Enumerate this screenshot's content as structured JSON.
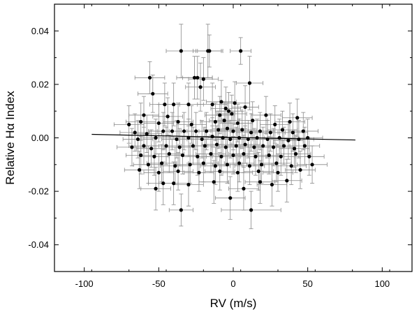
{
  "chart_data": {
    "type": "scatter",
    "title": "",
    "xlabel": "RV (m/s)",
    "ylabel": "Relative Hα Index",
    "xlim": [
      -120,
      120
    ],
    "ylim": [
      -0.05,
      0.05
    ],
    "x_ticks": [
      -100,
      -50,
      0,
      50,
      100
    ],
    "x_tick_labels": [
      "-100",
      "-50",
      "0",
      "50",
      "100"
    ],
    "y_ticks": [
      -0.04,
      -0.02,
      0.0,
      0.02,
      0.04
    ],
    "y_tick_labels": [
      "-0.04",
      "-0.02",
      "0.00",
      "0.02",
      "0.04"
    ],
    "grid": false,
    "marker_color": "#000000",
    "error_bar_color": "#888888",
    "fit_line": {
      "x": [
        -95,
        82
      ],
      "y": [
        0.0013,
        -0.0008
      ]
    },
    "points": [
      {
        "x": -35,
        "y": 0.0325,
        "xerr": 10,
        "yerr": 0.01
      },
      {
        "x": -17,
        "y": 0.0325,
        "xerr": 10,
        "yerr": 0.01
      },
      {
        "x": -16,
        "y": 0.0325,
        "xerr": 8,
        "yerr": 0.006
      },
      {
        "x": 5,
        "y": 0.0325,
        "xerr": 7,
        "yerr": 0.005
      },
      {
        "x": -56,
        "y": 0.0225,
        "xerr": 10,
        "yerr": 0.006
      },
      {
        "x": -26,
        "y": 0.0225,
        "xerr": 12,
        "yerr": 0.008
      },
      {
        "x": -24,
        "y": 0.0225,
        "xerr": 10,
        "yerr": 0.008
      },
      {
        "x": -20,
        "y": 0.022,
        "xerr": 10,
        "yerr": 0.008
      },
      {
        "x": 11,
        "y": 0.0205,
        "xerr": 9,
        "yerr": 0.01
      },
      {
        "x": -22,
        "y": 0.019,
        "xerr": 10,
        "yerr": 0.009
      },
      {
        "x": -54,
        "y": 0.0165,
        "xerr": 10,
        "yerr": 0.007
      },
      {
        "x": -30,
        "y": 0.0125,
        "xerr": 10,
        "yerr": 0.008
      },
      {
        "x": -40,
        "y": 0.0125,
        "xerr": 10,
        "yerr": 0.008
      },
      {
        "x": -46,
        "y": 0.0125,
        "xerr": 10,
        "yerr": 0.008
      },
      {
        "x": -14,
        "y": 0.0125,
        "xerr": 10,
        "yerr": 0.008
      },
      {
        "x": -8,
        "y": 0.0135,
        "xerr": 10,
        "yerr": 0.008
      },
      {
        "x": 1,
        "y": 0.013,
        "xerr": 10,
        "yerr": 0.008
      },
      {
        "x": -5,
        "y": 0.011,
        "xerr": 10,
        "yerr": 0.008
      },
      {
        "x": -3,
        "y": 0.01,
        "xerr": 9,
        "yerr": 0.007
      },
      {
        "x": 8,
        "y": 0.0115,
        "xerr": 9,
        "yerr": 0.008
      },
      {
        "x": -1,
        "y": 0.009,
        "xerr": 10,
        "yerr": 0.007
      },
      {
        "x": -9,
        "y": 0.0085,
        "xerr": 10,
        "yerr": 0.007
      },
      {
        "x": -60,
        "y": 0.0085,
        "xerr": 10,
        "yerr": 0.007
      },
      {
        "x": -44,
        "y": 0.008,
        "xerr": 10,
        "yerr": 0.007
      },
      {
        "x": 22,
        "y": 0.0085,
        "xerr": 10,
        "yerr": 0.007
      },
      {
        "x": 43,
        "y": 0.0075,
        "xerr": 10,
        "yerr": 0.007
      },
      {
        "x": -70,
        "y": 0.005,
        "xerr": 10,
        "yerr": 0.007
      },
      {
        "x": -62,
        "y": 0.006,
        "xerr": 10,
        "yerr": 0.007
      },
      {
        "x": -50,
        "y": 0.0055,
        "xerr": 10,
        "yerr": 0.007
      },
      {
        "x": -37,
        "y": 0.006,
        "xerr": 10,
        "yerr": 0.007
      },
      {
        "x": -28,
        "y": 0.005,
        "xerr": 10,
        "yerr": 0.007
      },
      {
        "x": -12,
        "y": 0.006,
        "xerr": 10,
        "yerr": 0.007
      },
      {
        "x": -6,
        "y": 0.0065,
        "xerr": 10,
        "yerr": 0.007
      },
      {
        "x": 3,
        "y": 0.0055,
        "xerr": 10,
        "yerr": 0.007
      },
      {
        "x": 13,
        "y": 0.0065,
        "xerr": 10,
        "yerr": 0.007
      },
      {
        "x": 28,
        "y": 0.005,
        "xerr": 10,
        "yerr": 0.007
      },
      {
        "x": 38,
        "y": 0.006,
        "xerr": 10,
        "yerr": 0.007
      },
      {
        "x": -66,
        "y": 0.002,
        "xerr": 10,
        "yerr": 0.007
      },
      {
        "x": -58,
        "y": 0.0015,
        "xerr": 10,
        "yerr": 0.007
      },
      {
        "x": -47,
        "y": 0.0025,
        "xerr": 10,
        "yerr": 0.007
      },
      {
        "x": -41,
        "y": 0.0025,
        "xerr": 10,
        "yerr": 0.007
      },
      {
        "x": -33,
        "y": 0.0025,
        "xerr": 10,
        "yerr": 0.007
      },
      {
        "x": -25,
        "y": 0.0025,
        "xerr": 10,
        "yerr": 0.007
      },
      {
        "x": -18,
        "y": 0.0025,
        "xerr": 10,
        "yerr": 0.007
      },
      {
        "x": -10,
        "y": 0.003,
        "xerr": 10,
        "yerr": 0.007
      },
      {
        "x": -4,
        "y": 0.0035,
        "xerr": 10,
        "yerr": 0.007
      },
      {
        "x": 0,
        "y": 0.0025,
        "xerr": 10,
        "yerr": 0.007
      },
      {
        "x": 6,
        "y": 0.003,
        "xerr": 10,
        "yerr": 0.007
      },
      {
        "x": 12,
        "y": 0.002,
        "xerr": 10,
        "yerr": 0.007
      },
      {
        "x": 18,
        "y": 0.0025,
        "xerr": 10,
        "yerr": 0.007
      },
      {
        "x": 25,
        "y": 0.002,
        "xerr": 10,
        "yerr": 0.007
      },
      {
        "x": 33,
        "y": 0.003,
        "xerr": 10,
        "yerr": 0.007
      },
      {
        "x": 40,
        "y": 0.002,
        "xerr": 10,
        "yerr": 0.007
      },
      {
        "x": 47,
        "y": 0.0025,
        "xerr": 10,
        "yerr": 0.007
      },
      {
        "x": -64,
        "y": -0.0005,
        "xerr": 10,
        "yerr": 0.007
      },
      {
        "x": -52,
        "y": 0.0,
        "xerr": 10,
        "yerr": 0.007
      },
      {
        "x": -38,
        "y": -0.0005,
        "xerr": 10,
        "yerr": 0.007
      },
      {
        "x": -30,
        "y": 0.0,
        "xerr": 10,
        "yerr": 0.007
      },
      {
        "x": -21,
        "y": -0.0005,
        "xerr": 10,
        "yerr": 0.007
      },
      {
        "x": -14,
        "y": 0.0005,
        "xerr": 10,
        "yerr": 0.007
      },
      {
        "x": -7,
        "y": 0.0,
        "xerr": 10,
        "yerr": 0.007
      },
      {
        "x": -2,
        "y": -0.0005,
        "xerr": 10,
        "yerr": 0.007
      },
      {
        "x": 4,
        "y": 0.0,
        "xerr": 10,
        "yerr": 0.007
      },
      {
        "x": 10,
        "y": -0.0005,
        "xerr": 10,
        "yerr": 0.007
      },
      {
        "x": 16,
        "y": 0.0,
        "xerr": 10,
        "yerr": 0.007
      },
      {
        "x": 23,
        "y": -0.0005,
        "xerr": 10,
        "yerr": 0.007
      },
      {
        "x": 31,
        "y": 0.0,
        "xerr": 10,
        "yerr": 0.007
      },
      {
        "x": 37,
        "y": -0.001,
        "xerr": 10,
        "yerr": 0.007
      },
      {
        "x": 44,
        "y": -0.0005,
        "xerr": 10,
        "yerr": 0.007
      },
      {
        "x": 50,
        "y": 0.0,
        "xerr": 10,
        "yerr": 0.007
      },
      {
        "x": -68,
        "y": -0.0035,
        "xerr": 10,
        "yerr": 0.007
      },
      {
        "x": -60,
        "y": -0.003,
        "xerr": 10,
        "yerr": 0.007
      },
      {
        "x": -55,
        "y": -0.004,
        "xerr": 10,
        "yerr": 0.007
      },
      {
        "x": -45,
        "y": -0.003,
        "xerr": 10,
        "yerr": 0.007
      },
      {
        "x": -36,
        "y": -0.0035,
        "xerr": 10,
        "yerr": 0.007
      },
      {
        "x": -27,
        "y": -0.003,
        "xerr": 10,
        "yerr": 0.007
      },
      {
        "x": -19,
        "y": -0.003,
        "xerr": 10,
        "yerr": 0.007
      },
      {
        "x": -11,
        "y": -0.0025,
        "xerr": 10,
        "yerr": 0.007
      },
      {
        "x": -5,
        "y": -0.0035,
        "xerr": 10,
        "yerr": 0.007
      },
      {
        "x": 2,
        "y": -0.003,
        "xerr": 10,
        "yerr": 0.007
      },
      {
        "x": 8,
        "y": -0.0025,
        "xerr": 10,
        "yerr": 0.007
      },
      {
        "x": 14,
        "y": -0.0035,
        "xerr": 10,
        "yerr": 0.007
      },
      {
        "x": 20,
        "y": -0.003,
        "xerr": 10,
        "yerr": 0.007
      },
      {
        "x": 27,
        "y": -0.0035,
        "xerr": 10,
        "yerr": 0.007
      },
      {
        "x": 34,
        "y": -0.003,
        "xerr": 10,
        "yerr": 0.007
      },
      {
        "x": 41,
        "y": -0.004,
        "xerr": 10,
        "yerr": 0.007
      },
      {
        "x": 48,
        "y": -0.003,
        "xerr": 10,
        "yerr": 0.007
      },
      {
        "x": -62,
        "y": -0.0065,
        "xerr": 10,
        "yerr": 0.007
      },
      {
        "x": -53,
        "y": -0.007,
        "xerr": 10,
        "yerr": 0.007
      },
      {
        "x": -43,
        "y": -0.006,
        "xerr": 10,
        "yerr": 0.007
      },
      {
        "x": -34,
        "y": -0.0065,
        "xerr": 10,
        "yerr": 0.007
      },
      {
        "x": -24,
        "y": -0.007,
        "xerr": 10,
        "yerr": 0.007
      },
      {
        "x": -15,
        "y": -0.006,
        "xerr": 10,
        "yerr": 0.007
      },
      {
        "x": -8,
        "y": -0.007,
        "xerr": 10,
        "yerr": 0.007
      },
      {
        "x": 0,
        "y": -0.0065,
        "xerr": 10,
        "yerr": 0.007
      },
      {
        "x": 7,
        "y": -0.006,
        "xerr": 10,
        "yerr": 0.007
      },
      {
        "x": 15,
        "y": -0.007,
        "xerr": 10,
        "yerr": 0.007
      },
      {
        "x": 24,
        "y": -0.0065,
        "xerr": 10,
        "yerr": 0.007
      },
      {
        "x": 32,
        "y": -0.007,
        "xerr": 10,
        "yerr": 0.007
      },
      {
        "x": 42,
        "y": -0.006,
        "xerr": 10,
        "yerr": 0.007
      },
      {
        "x": 51,
        "y": -0.007,
        "xerr": 10,
        "yerr": 0.007
      },
      {
        "x": -57,
        "y": -0.01,
        "xerr": 10,
        "yerr": 0.007
      },
      {
        "x": -48,
        "y": -0.0095,
        "xerr": 10,
        "yerr": 0.007
      },
      {
        "x": -39,
        "y": -0.0105,
        "xerr": 10,
        "yerr": 0.007
      },
      {
        "x": -29,
        "y": -0.01,
        "xerr": 10,
        "yerr": 0.007
      },
      {
        "x": -20,
        "y": -0.0095,
        "xerr": 10,
        "yerr": 0.007
      },
      {
        "x": -12,
        "y": -0.0105,
        "xerr": 10,
        "yerr": 0.007
      },
      {
        "x": -4,
        "y": -0.01,
        "xerr": 10,
        "yerr": 0.007
      },
      {
        "x": 4,
        "y": -0.0095,
        "xerr": 10,
        "yerr": 0.007
      },
      {
        "x": 11,
        "y": -0.0105,
        "xerr": 10,
        "yerr": 0.007
      },
      {
        "x": 19,
        "y": -0.01,
        "xerr": 10,
        "yerr": 0.007
      },
      {
        "x": 29,
        "y": -0.0095,
        "xerr": 10,
        "yerr": 0.007
      },
      {
        "x": 39,
        "y": -0.0105,
        "xerr": 10,
        "yerr": 0.007
      },
      {
        "x": 53,
        "y": -0.01,
        "xerr": 10,
        "yerr": 0.007
      },
      {
        "x": -63,
        "y": -0.012,
        "xerr": 10,
        "yerr": 0.007
      },
      {
        "x": -50,
        "y": -0.013,
        "xerr": 10,
        "yerr": 0.007
      },
      {
        "x": -37,
        "y": -0.0125,
        "xerr": 10,
        "yerr": 0.007
      },
      {
        "x": -23,
        "y": -0.013,
        "xerr": 10,
        "yerr": 0.007
      },
      {
        "x": -9,
        "y": -0.0125,
        "xerr": 10,
        "yerr": 0.007
      },
      {
        "x": 3,
        "y": -0.013,
        "xerr": 10,
        "yerr": 0.007
      },
      {
        "x": 17,
        "y": -0.0125,
        "xerr": 10,
        "yerr": 0.007
      },
      {
        "x": 30,
        "y": -0.013,
        "xerr": 10,
        "yerr": 0.007
      },
      {
        "x": 45,
        "y": -0.012,
        "xerr": 10,
        "yerr": 0.007
      },
      {
        "x": -47,
        "y": -0.017,
        "xerr": 10,
        "yerr": 0.008
      },
      {
        "x": -52,
        "y": -0.019,
        "xerr": 10,
        "yerr": 0.008
      },
      {
        "x": -40,
        "y": -0.017,
        "xerr": 10,
        "yerr": 0.008
      },
      {
        "x": -30,
        "y": -0.0175,
        "xerr": 10,
        "yerr": 0.008
      },
      {
        "x": -13,
        "y": -0.0165,
        "xerr": 10,
        "yerr": 0.008
      },
      {
        "x": 7,
        "y": -0.019,
        "xerr": 10,
        "yerr": 0.008
      },
      {
        "x": 18,
        "y": -0.0165,
        "xerr": 10,
        "yerr": 0.008
      },
      {
        "x": 26,
        "y": -0.0175,
        "xerr": 10,
        "yerr": 0.008
      },
      {
        "x": 36,
        "y": -0.016,
        "xerr": 10,
        "yerr": 0.008
      },
      {
        "x": -2,
        "y": -0.0225,
        "xerr": 10,
        "yerr": 0.008
      },
      {
        "x": -35,
        "y": -0.027,
        "xerr": 8,
        "yerr": 0.006
      },
      {
        "x": 12,
        "y": -0.027,
        "xerr": 20,
        "yerr": 0.007
      }
    ]
  }
}
